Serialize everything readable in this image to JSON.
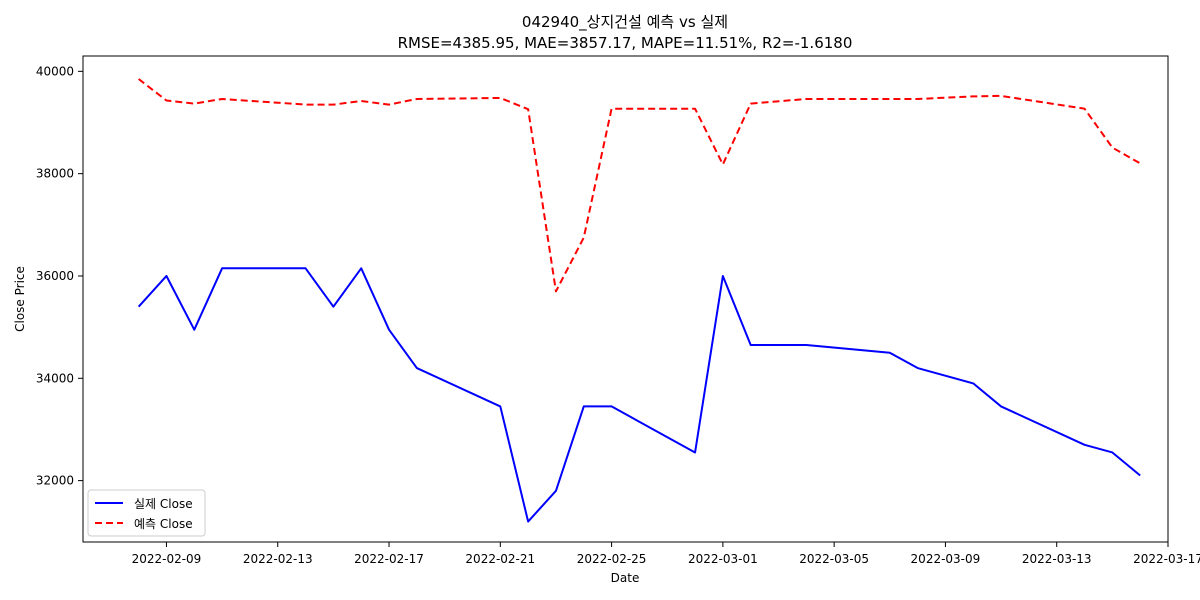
{
  "chart_data": {
    "type": "line",
    "title": "042940_상지건설 예측 vs 실제",
    "subtitle": "RMSE=4385.95, MAE=3857.17, MAPE=11.51%, R2=-1.6180",
    "xlabel": "Date",
    "ylabel": "Close Price",
    "x_ticks": [
      "2022-02-09",
      "2022-02-13",
      "2022-02-17",
      "2022-02-21",
      "2022-02-25",
      "2022-03-01",
      "2022-03-05",
      "2022-03-09",
      "2022-03-13",
      "2022-03-17"
    ],
    "y_ticks": [
      32000,
      34000,
      36000,
      38000,
      40000
    ],
    "xlim": [
      "2022-02-06",
      "2022-03-17"
    ],
    "ylim": [
      30800,
      40300
    ],
    "grid": false,
    "legend_position": "lower-left",
    "series": [
      {
        "name": "실제 Close",
        "color": "#0000ff",
        "style": "solid",
        "points": [
          [
            "2022-02-08",
            35400
          ],
          [
            "2022-02-09",
            36000
          ],
          [
            "2022-02-10",
            34950
          ],
          [
            "2022-02-11",
            36150
          ],
          [
            "2022-02-14",
            36150
          ],
          [
            "2022-02-15",
            35400
          ],
          [
            "2022-02-16",
            36150
          ],
          [
            "2022-02-17",
            34950
          ],
          [
            "2022-02-18",
            34200
          ],
          [
            "2022-02-21",
            33450
          ],
          [
            "2022-02-22",
            31200
          ],
          [
            "2022-02-23",
            31800
          ],
          [
            "2022-02-24",
            33450
          ],
          [
            "2022-02-25",
            33450
          ],
          [
            "2022-02-28",
            32550
          ],
          [
            "2022-03-01",
            36000
          ],
          [
            "2022-03-02",
            34650
          ],
          [
            "2022-03-04",
            34650
          ],
          [
            "2022-03-07",
            34500
          ],
          [
            "2022-03-08",
            34200
          ],
          [
            "2022-03-10",
            33900
          ],
          [
            "2022-03-11",
            33450
          ],
          [
            "2022-03-14",
            32700
          ],
          [
            "2022-03-15",
            32550
          ],
          [
            "2022-03-16",
            32100
          ]
        ]
      },
      {
        "name": "예측 Close",
        "color": "#ff0000",
        "style": "dashed",
        "points": [
          [
            "2022-02-08",
            39850
          ],
          [
            "2022-02-09",
            39430
          ],
          [
            "2022-02-10",
            39370
          ],
          [
            "2022-02-11",
            39460
          ],
          [
            "2022-02-14",
            39350
          ],
          [
            "2022-02-15",
            39350
          ],
          [
            "2022-02-16",
            39420
          ],
          [
            "2022-02-17",
            39350
          ],
          [
            "2022-02-18",
            39460
          ],
          [
            "2022-02-21",
            39480
          ],
          [
            "2022-02-22",
            39260
          ],
          [
            "2022-02-23",
            35700
          ],
          [
            "2022-02-24",
            36750
          ],
          [
            "2022-02-25",
            39270
          ],
          [
            "2022-02-28",
            39270
          ],
          [
            "2022-03-01",
            38180
          ],
          [
            "2022-03-02",
            39370
          ],
          [
            "2022-03-04",
            39460
          ],
          [
            "2022-03-07",
            39460
          ],
          [
            "2022-03-08",
            39460
          ],
          [
            "2022-03-10",
            39510
          ],
          [
            "2022-03-11",
            39520
          ],
          [
            "2022-03-14",
            39270
          ],
          [
            "2022-03-15",
            38510
          ],
          [
            "2022-03-16",
            38200
          ]
        ]
      }
    ]
  }
}
